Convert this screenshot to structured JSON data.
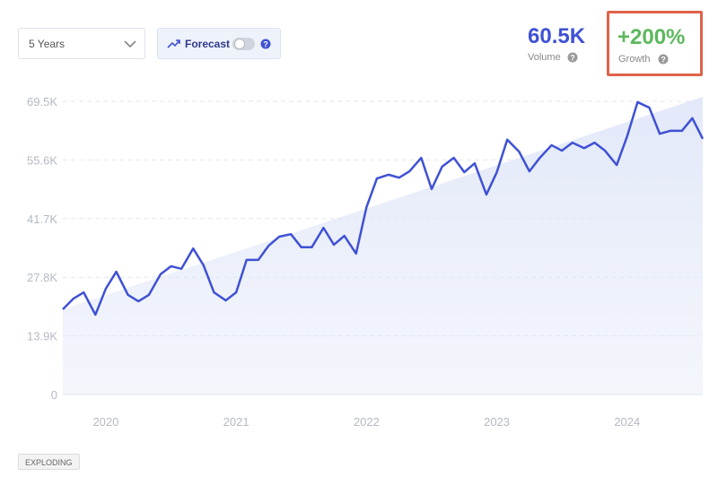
{
  "controls": {
    "range": "5 Years",
    "forecast": "Forecast"
  },
  "stats": {
    "volume": {
      "value": "60.5K",
      "label": "Volume"
    },
    "growth": {
      "value": "+200%",
      "label": "Growth"
    }
  },
  "badge": "EXPLODING",
  "chart_data": {
    "type": "line",
    "x": [
      2019.67,
      2019.75,
      2019.83,
      2019.92,
      2020.0,
      2020.08,
      2020.17,
      2020.25,
      2020.33,
      2020.42,
      2020.5,
      2020.58,
      2020.67,
      2020.75,
      2020.83,
      2020.92,
      2021.0,
      2021.08,
      2021.17,
      2021.25,
      2021.33,
      2021.42,
      2021.5,
      2021.58,
      2021.67,
      2021.75,
      2021.83,
      2021.92,
      2022.0,
      2022.08,
      2022.17,
      2022.25,
      2022.33,
      2022.42,
      2022.5,
      2022.58,
      2022.67,
      2022.75,
      2022.83,
      2022.92,
      2023.0,
      2023.08,
      2023.17,
      2023.25,
      2023.33,
      2023.42,
      2023.5,
      2023.58,
      2023.67,
      2023.75,
      2023.83,
      2023.92,
      2024.0,
      2024.08,
      2024.17,
      2024.25,
      2024.33,
      2024.42,
      2024.5,
      2024.58
    ],
    "series": [
      {
        "color": "#3f51d4",
        "values": [
          20200,
          22700,
          24200,
          18900,
          25100,
          29100,
          23600,
          22100,
          23600,
          28500,
          30400,
          29800,
          34600,
          30600,
          24200,
          22300,
          24200,
          31900,
          31900,
          35300,
          37400,
          38000,
          34900,
          34900,
          39500,
          35500,
          37600,
          33400,
          44400,
          51200,
          52100,
          51400,
          52900,
          56100,
          48700,
          54000,
          56100,
          52700,
          54800,
          47400,
          52700,
          60400,
          57600,
          52900,
          56100,
          59100,
          57800,
          59700,
          58400,
          59700,
          57800,
          54400,
          61200,
          69300,
          68000,
          61800,
          62500,
          62500,
          65500,
          60600
        ]
      }
    ],
    "xlim": [
      2019.67,
      2024.58
    ],
    "xticks": [
      2020,
      2021,
      2022,
      2023,
      2024
    ],
    "ylim": [
      0,
      69500
    ],
    "yticks": [
      0,
      {
        "value": 13900,
        "label": "13.9K"
      },
      {
        "value": 27800,
        "label": "27.8K"
      },
      {
        "value": 41700,
        "label": "41.7K"
      },
      {
        "value": 55600,
        "label": "55.6K"
      },
      {
        "value": 69500,
        "label": "69.5K"
      }
    ],
    "grid": true
  }
}
